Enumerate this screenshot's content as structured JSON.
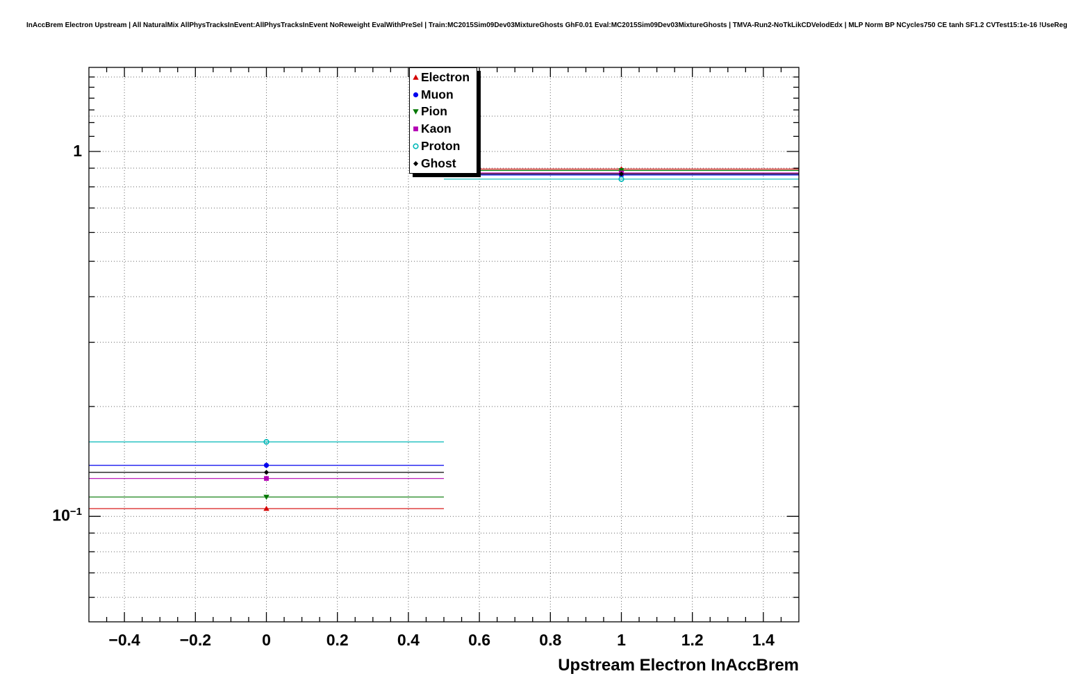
{
  "title": "InAccBrem Electron Upstream | All NaturalMix AllPhysTracksInEvent:AllPhysTracksInEvent NoReweight EvalWithPreSel | Train:MC2015Sim09Dev03MixtureGhosts GhF0.01 Eval:MC2015Sim09Dev03MixtureGhosts | TMVA-Run2-NoTkLikCDVelodEdx | MLP Norm BP NCycles750 CE tanh SF1.2 CVTest15:1e-16 !UseReg",
  "y_axis": {
    "tick_1_label": "1",
    "tick_01_base": "10",
    "tick_01_exp": "−1"
  },
  "chart_data": {
    "type": "line",
    "style": "root-binned-histogram-comparison",
    "title": "InAccBrem Electron Upstream",
    "xlabel": "Upstream Electron InAccBrem",
    "ylabel": "",
    "y_scale": "log",
    "grid": true,
    "legend_position": "top-center",
    "xlim": [
      -0.5,
      1.5
    ],
    "ylim": [
      0.0514,
      1.7
    ],
    "x_ticks": [
      -0.4,
      -0.2,
      0,
      0.2,
      0.4,
      0.6,
      0.8,
      1,
      1.2,
      1.4
    ],
    "x_tick_labels": [
      "−0.4",
      "−0.2",
      "0",
      "0.2",
      "0.4",
      "0.6",
      "0.8",
      "1",
      "1.2",
      "1.4"
    ],
    "y_major_ticks": [
      1,
      0.1
    ],
    "y_major_tick_labels": [
      "1",
      "10^{-1}"
    ],
    "bins": [
      {
        "low": -0.5,
        "high": 0.5,
        "center": 0
      },
      {
        "low": 0.5,
        "high": 1.5,
        "center": 1
      }
    ],
    "bin_variable_values": [
      0,
      1
    ],
    "series": [
      {
        "name": "Electron",
        "color": "#d40000",
        "marker": "triangle-up",
        "values": [
          0.105,
          0.895
        ]
      },
      {
        "name": "Muon",
        "color": "#0000ee",
        "marker": "circle",
        "values": [
          0.138,
          0.862
        ]
      },
      {
        "name": "Pion",
        "color": "#007700",
        "marker": "triangle-down",
        "values": [
          0.113,
          0.887
        ]
      },
      {
        "name": "Kaon",
        "color": "#b300b3",
        "marker": "square",
        "values": [
          0.127,
          0.873
        ]
      },
      {
        "name": "Proton",
        "color": "#00b8b8",
        "marker": "open-circle",
        "values": [
          0.16,
          0.84
        ]
      },
      {
        "name": "Ghost",
        "color": "#000000",
        "marker": "diamond",
        "values": [
          0.132,
          0.868
        ]
      }
    ]
  }
}
